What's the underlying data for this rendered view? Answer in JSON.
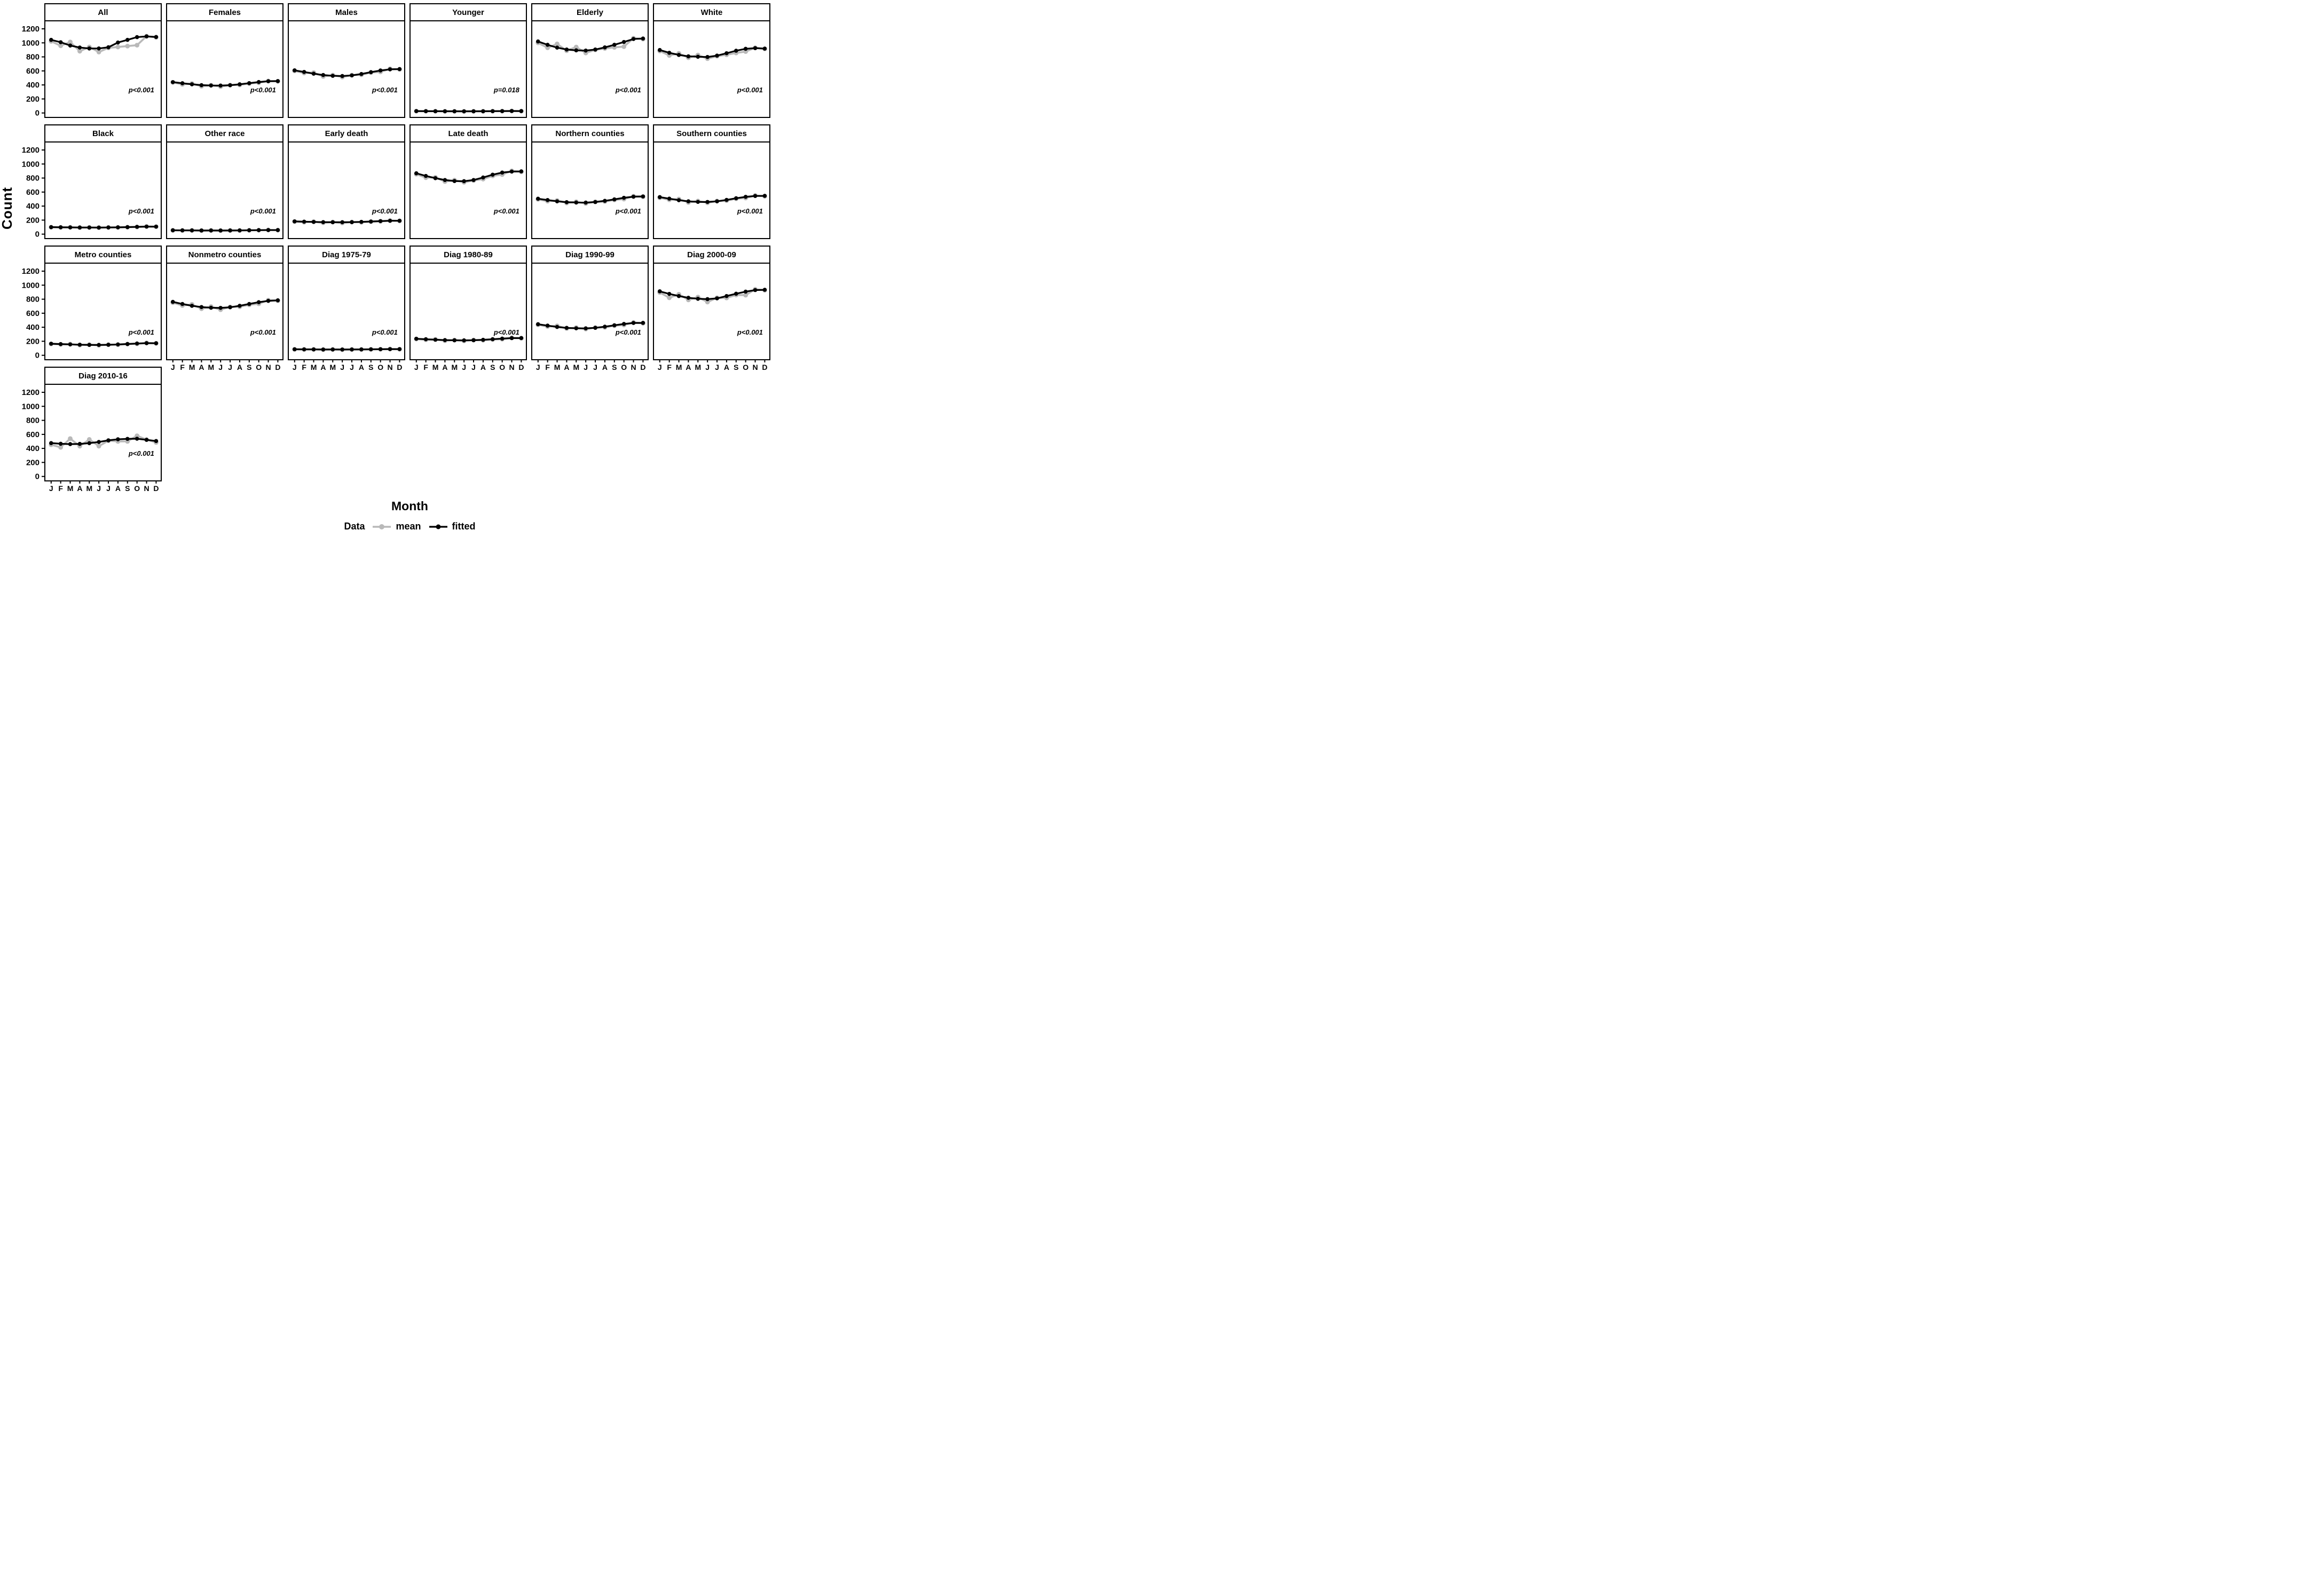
{
  "figure": {
    "y_axis_title": "Count",
    "x_axis_title": "Month",
    "legend": {
      "title": "Data",
      "items": [
        {
          "label": "mean",
          "color": "#b9b9b9"
        },
        {
          "label": "fitted",
          "color": "#000000"
        }
      ]
    },
    "colors": {
      "mean": "#b9b9b9",
      "fitted": "#000000",
      "border": "#000000",
      "background": "#ffffff"
    },
    "y_ticks": [
      1200,
      1000,
      800,
      600,
      400,
      200,
      0
    ]
  },
  "chart_data": {
    "type": "line",
    "categories": [
      "J",
      "F",
      "M",
      "A",
      "M",
      "J",
      "J",
      "A",
      "S",
      "O",
      "N",
      "D"
    ],
    "xlabel": "Month",
    "ylabel": "Count",
    "ylim": [
      0,
      1280
    ],
    "grid": false,
    "legend_position": "bottom",
    "series_names": [
      "mean",
      "fitted"
    ],
    "panels": [
      {
        "label": "All",
        "p": "p<0.001",
        "fitted": [
          1043,
          1009,
          962,
          933,
          920,
          920,
          937,
          1005,
          1043,
          1082,
          1092,
          1084
        ],
        "mean": [
          1022,
          958,
          1013,
          881,
          941,
          869,
          928,
          941,
          954,
          967,
          1095,
          1078
        ]
      },
      {
        "label": "Females",
        "p": "p<0.001",
        "fitted": [
          440,
          424,
          409,
          397,
          392,
          391,
          396,
          409,
          425,
          441,
          453,
          455
        ],
        "mean": [
          436,
          408,
          420,
          382,
          396,
          376,
          398,
          400,
          420,
          431,
          456,
          451
        ]
      },
      {
        "label": "Males",
        "p": "p<0.001",
        "fitted": [
          608,
          585,
          560,
          541,
          530,
          527,
          536,
          556,
          582,
          606,
          622,
          626
        ],
        "mean": [
          600,
          570,
          576,
          521,
          540,
          512,
          540,
          545,
          576,
          586,
          630,
          622
        ]
      },
      {
        "label": "Younger",
        "p": "p=0.018",
        "fitted": [
          27,
          26,
          25,
          25,
          24,
          24,
          24,
          25,
          26,
          27,
          28,
          27
        ],
        "mean": [
          26,
          25,
          26,
          23,
          25,
          22,
          25,
          24,
          26,
          26,
          29,
          27
        ]
      },
      {
        "label": "Elderly",
        "p": "p<0.001",
        "fitted": [
          1020,
          972,
          932,
          905,
          893,
          890,
          905,
          935,
          972,
          1012,
          1055,
          1062
        ],
        "mean": [
          1000,
          930,
          985,
          888,
          940,
          856,
          900,
          920,
          936,
          946,
          1066,
          1054
        ]
      },
      {
        "label": "White",
        "p": "p<0.001",
        "fitted": [
          898,
          858,
          828,
          808,
          802,
          798,
          818,
          852,
          888,
          915,
          925,
          918
        ],
        "mean": [
          884,
          820,
          850,
          788,
          826,
          775,
          810,
          830,
          856,
          876,
          930,
          914
        ]
      },
      {
        "label": "Black",
        "p": "p<0.001",
        "fitted": [
          100,
          98,
          96,
          95,
          94,
          94,
          95,
          97,
          100,
          104,
          107,
          107
        ],
        "mean": [
          98,
          95,
          98,
          92,
          96,
          91,
          96,
          96,
          99,
          102,
          110,
          106
        ]
      },
      {
        "label": "Other race",
        "p": "p<0.001",
        "fitted": [
          55,
          54,
          53,
          52,
          52,
          52,
          52,
          53,
          55,
          57,
          58,
          58
        ],
        "mean": [
          54,
          52,
          54,
          50,
          53,
          49,
          53,
          52,
          55,
          56,
          60,
          57
        ]
      },
      {
        "label": "Early death",
        "p": "p<0.001",
        "fitted": [
          182,
          178,
          174,
          171,
          170,
          170,
          171,
          175,
          180,
          186,
          190,
          191
        ],
        "mean": [
          179,
          170,
          178,
          162,
          172,
          159,
          172,
          169,
          178,
          182,
          194,
          188
        ]
      },
      {
        "label": "Late death",
        "p": "p<0.001",
        "fitted": [
          868,
          830,
          798,
          772,
          757,
          755,
          772,
          808,
          848,
          878,
          892,
          895
        ],
        "mean": [
          855,
          805,
          810,
          750,
          770,
          740,
          765,
          785,
          830,
          850,
          902,
          888
        ]
      },
      {
        "label": "Northern counties",
        "p": "p<0.001",
        "fitted": [
          505,
          486,
          468,
          456,
          451,
          450,
          458,
          475,
          496,
          518,
          534,
          538
        ],
        "mean": [
          496,
          470,
          480,
          445,
          462,
          438,
          462,
          465,
          488,
          500,
          541,
          532
        ]
      },
      {
        "label": "Southern counties",
        "p": "p<0.001",
        "fitted": [
          528,
          506,
          484,
          468,
          460,
          459,
          468,
          488,
          512,
          532,
          544,
          546
        ],
        "mean": [
          519,
          490,
          500,
          452,
          472,
          447,
          472,
          478,
          505,
          515,
          551,
          540
        ]
      },
      {
        "label": "Metro counties",
        "p": "p<0.001",
        "fitted": [
          165,
          160,
          155,
          151,
          148,
          148,
          150,
          155,
          161,
          168,
          173,
          172
        ],
        "mean": [
          162,
          155,
          160,
          146,
          152,
          142,
          152,
          150,
          160,
          163,
          177,
          170
        ]
      },
      {
        "label": "Nonmetro counties",
        "p": "p<0.001",
        "fitted": [
          762,
          732,
          706,
          688,
          678,
          676,
          685,
          706,
          732,
          757,
          776,
          784
        ],
        "mean": [
          751,
          710,
          726,
          664,
          695,
          650,
          690,
          692,
          720,
          735,
          786,
          778
        ]
      },
      {
        "label": "Diag 1975-79",
        "p": "p<0.001",
        "fitted": [
          86,
          85,
          84,
          83,
          83,
          83,
          83,
          84,
          85,
          87,
          88,
          88
        ],
        "mean": [
          85,
          83,
          85,
          80,
          84,
          79,
          84,
          83,
          86,
          86,
          90,
          87
        ]
      },
      {
        "label": "Diag 1980-89",
        "p": "p<0.001",
        "fitted": [
          236,
          229,
          222,
          217,
          214,
          213,
          215,
          221,
          229,
          238,
          245,
          246
        ],
        "mean": [
          232,
          221,
          228,
          208,
          218,
          205,
          218,
          215,
          226,
          230,
          249,
          242
        ]
      },
      {
        "label": "Diag 1990-99",
        "p": "p<0.001",
        "fitted": [
          443,
          423,
          404,
          391,
          385,
          384,
          392,
          408,
          428,
          447,
          461,
          462
        ],
        "mean": [
          435,
          410,
          420,
          382,
          395,
          374,
          395,
          398,
          422,
          432,
          468,
          457
        ]
      },
      {
        "label": "Diag 2000-09",
        "p": "p<0.001",
        "fitted": [
          912,
          875,
          845,
          820,
          806,
          801,
          812,
          845,
          878,
          908,
          930,
          934
        ],
        "mean": [
          896,
          820,
          870,
          790,
          830,
          760,
          820,
          818,
          860,
          858,
          941,
          928
        ]
      },
      {
        "label": "Diag 2010-16",
        "p": "p<0.001",
        "fitted": [
          476,
          466,
          461,
          464,
          475,
          492,
          515,
          530,
          536,
          538,
          522,
          505
        ],
        "mean": [
          452,
          415,
          540,
          432,
          528,
          432,
          510,
          500,
          500,
          580,
          525,
          485
        ]
      }
    ]
  }
}
